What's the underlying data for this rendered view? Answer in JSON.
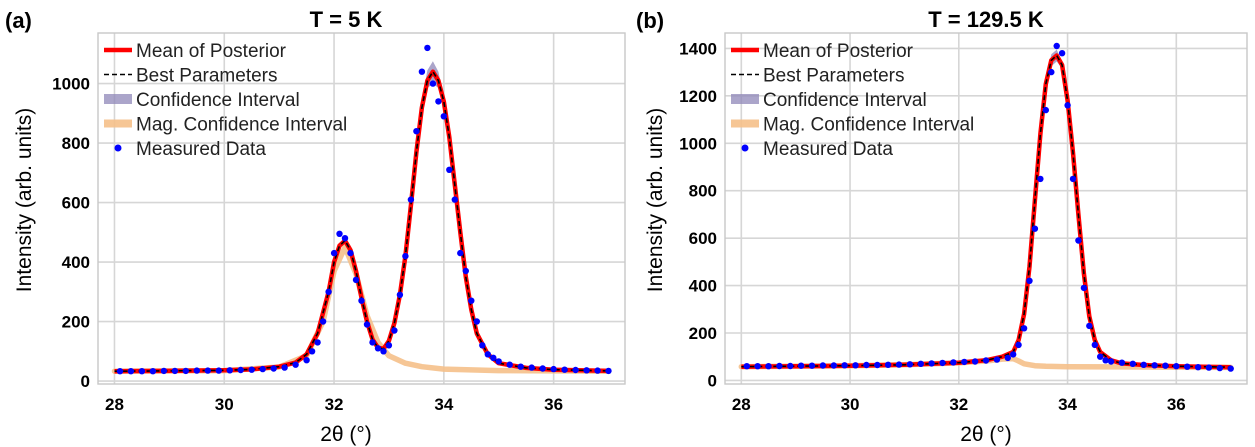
{
  "chart_data": [
    {
      "type": "line",
      "panel_label": "(a)",
      "title": "T = 5 K",
      "xlabel": "2θ (°)",
      "ylabel": "Intensity (arb. units)",
      "xlim": [
        27.7,
        37.3
      ],
      "ylim": [
        -10,
        1170
      ],
      "xticks": [
        28,
        30,
        32,
        34,
        36
      ],
      "yticks": [
        0,
        200,
        400,
        600,
        800,
        1000
      ],
      "grid": true,
      "legend_position": "top-left",
      "legend": [
        "Mean of Posterior",
        "Best Parameters",
        "Confidence Interval",
        "Mag. Confidence Interval",
        "Measured Data"
      ],
      "colors": {
        "mean": "#ff0000",
        "best": "#000000",
        "ci": "#8f87b8",
        "mag": "#f5c08a",
        "data": "#0000ff"
      },
      "model": {
        "x": [
          28.0,
          29.0,
          30.0,
          30.5,
          31.0,
          31.3,
          31.5,
          31.7,
          31.9,
          32.0,
          32.1,
          32.2,
          32.3,
          32.4,
          32.5,
          32.6,
          32.7,
          32.8,
          32.9,
          33.0,
          33.1,
          33.2,
          33.3,
          33.4,
          33.5,
          33.6,
          33.7,
          33.8,
          33.9,
          34.0,
          34.1,
          34.2,
          34.3,
          34.4,
          34.5,
          34.6,
          34.8,
          35.0,
          35.5,
          36.0,
          37.0
        ],
        "y": [
          33,
          34,
          36,
          39,
          48,
          62,
          90,
          160,
          300,
          400,
          455,
          472,
          440,
          370,
          280,
          200,
          140,
          112,
          108,
          135,
          195,
          290,
          420,
          590,
          770,
          920,
          1010,
          1040,
          1010,
          940,
          820,
          660,
          500,
          350,
          240,
          160,
          90,
          60,
          44,
          38,
          34
        ]
      },
      "ci_band": {
        "x": [
          33.6,
          33.7,
          33.8,
          33.9,
          34.0
        ],
        "upper": [
          945,
          1045,
          1075,
          1040,
          955
        ],
        "lower": [
          905,
          985,
          1000,
          985,
          925
        ]
      },
      "mag_curve": {
        "x": [
          28.0,
          30.0,
          31.0,
          31.5,
          31.8,
          32.0,
          32.2,
          32.4,
          32.6,
          32.8,
          33.0,
          33.3,
          33.6,
          34.0,
          35.0,
          36.0,
          37.0
        ],
        "y": [
          33,
          35,
          47,
          85,
          200,
          370,
          450,
          360,
          220,
          130,
          85,
          60,
          48,
          40,
          35,
          34,
          33
        ]
      },
      "measured": {
        "x": [
          28.1,
          28.3,
          28.5,
          28.7,
          28.9,
          29.1,
          29.3,
          29.5,
          29.7,
          29.9,
          30.1,
          30.3,
          30.5,
          30.7,
          30.9,
          31.1,
          31.3,
          31.5,
          31.6,
          31.7,
          31.8,
          31.9,
          32.0,
          32.1,
          32.2,
          32.3,
          32.4,
          32.5,
          32.6,
          32.7,
          32.8,
          32.9,
          33.0,
          33.1,
          33.2,
          33.3,
          33.4,
          33.5,
          33.6,
          33.7,
          33.8,
          33.9,
          34.0,
          34.1,
          34.2,
          34.3,
          34.4,
          34.5,
          34.6,
          34.7,
          34.8,
          34.9,
          35.0,
          35.2,
          35.4,
          35.6,
          35.8,
          36.0,
          36.2,
          36.4,
          36.6,
          36.8,
          37.0
        ],
        "y": [
          33,
          33,
          33,
          33,
          34,
          34,
          34,
          35,
          35,
          35,
          36,
          37,
          38,
          40,
          42,
          45,
          55,
          70,
          100,
          130,
          200,
          300,
          430,
          495,
          480,
          430,
          340,
          270,
          190,
          130,
          110,
          100,
          120,
          170,
          290,
          420,
          610,
          840,
          1040,
          1120,
          1000,
          940,
          890,
          710,
          610,
          430,
          370,
          270,
          200,
          120,
          90,
          78,
          66,
          55,
          48,
          45,
          42,
          40,
          38,
          37,
          36,
          35,
          34
        ]
      }
    },
    {
      "type": "line",
      "panel_label": "(b)",
      "title": "T = 129.5 K",
      "xlabel": "2θ (°)",
      "ylabel": "Intensity (arb. units)",
      "xlim": [
        27.7,
        37.3
      ],
      "ylim": [
        -15,
        1465
      ],
      "xticks": [
        28,
        30,
        32,
        34,
        36
      ],
      "yticks": [
        0,
        200,
        400,
        600,
        800,
        1000,
        1200,
        1400
      ],
      "grid": true,
      "legend_position": "top-left",
      "legend": [
        "Mean of Posterior",
        "Best Parameters",
        "Confidence Interval",
        "Mag. Confidence Interval",
        "Measured Data"
      ],
      "colors": {
        "mean": "#ff0000",
        "best": "#000000",
        "ci": "#8f87b8",
        "mag": "#f5c08a",
        "data": "#0000ff"
      },
      "model": {
        "x": [
          28.0,
          29.0,
          30.0,
          31.0,
          32.0,
          32.5,
          32.8,
          33.0,
          33.1,
          33.2,
          33.3,
          33.4,
          33.5,
          33.6,
          33.7,
          33.8,
          33.9,
          34.0,
          34.1,
          34.2,
          34.3,
          34.4,
          34.5,
          34.6,
          34.8,
          35.0,
          35.5,
          36.0,
          37.0
        ],
        "y": [
          58,
          60,
          62,
          66,
          75,
          85,
          100,
          120,
          170,
          280,
          480,
          760,
          1040,
          1250,
          1350,
          1370,
          1330,
          1180,
          960,
          700,
          450,
          270,
          170,
          120,
          85,
          72,
          64,
          60,
          56
        ]
      },
      "ci_band": {
        "x": [
          33.6,
          33.7,
          33.8,
          33.9,
          34.0
        ],
        "upper": [
          1270,
          1375,
          1395,
          1345,
          1200
        ],
        "lower": [
          1230,
          1325,
          1345,
          1315,
          1160
        ]
      },
      "mag_curve": {
        "x": [
          28.0,
          29.0,
          30.0,
          31.0,
          32.0,
          32.5,
          32.8,
          33.0,
          33.1,
          33.2,
          33.4,
          33.6,
          34.0,
          35.0,
          36.0,
          37.0
        ],
        "y": [
          58,
          60,
          62,
          66,
          74,
          82,
          90,
          92,
          82,
          70,
          62,
          60,
          58,
          57,
          56,
          55
        ]
      },
      "measured": {
        "x": [
          28.1,
          28.3,
          28.5,
          28.7,
          28.9,
          29.1,
          29.3,
          29.5,
          29.7,
          29.9,
          30.1,
          30.3,
          30.5,
          30.7,
          30.9,
          31.1,
          31.3,
          31.5,
          31.7,
          31.9,
          32.1,
          32.3,
          32.5,
          32.7,
          32.9,
          33.0,
          33.1,
          33.2,
          33.3,
          33.4,
          33.5,
          33.6,
          33.7,
          33.8,
          33.9,
          34.0,
          34.1,
          34.2,
          34.3,
          34.4,
          34.5,
          34.6,
          34.7,
          34.8,
          35.0,
          35.2,
          35.4,
          35.6,
          35.8,
          36.0,
          36.2,
          36.4,
          36.6,
          36.8,
          37.0
        ],
        "y": [
          60,
          60,
          60,
          61,
          61,
          62,
          62,
          63,
          63,
          64,
          64,
          65,
          65,
          66,
          67,
          68,
          70,
          72,
          74,
          76,
          78,
          80,
          84,
          88,
          95,
          110,
          150,
          220,
          420,
          640,
          850,
          1140,
          1300,
          1410,
          1380,
          1160,
          850,
          590,
          390,
          230,
          150,
          100,
          85,
          80,
          75,
          70,
          66,
          64,
          62,
          60,
          58,
          56,
          54,
          52,
          50
        ]
      }
    }
  ]
}
